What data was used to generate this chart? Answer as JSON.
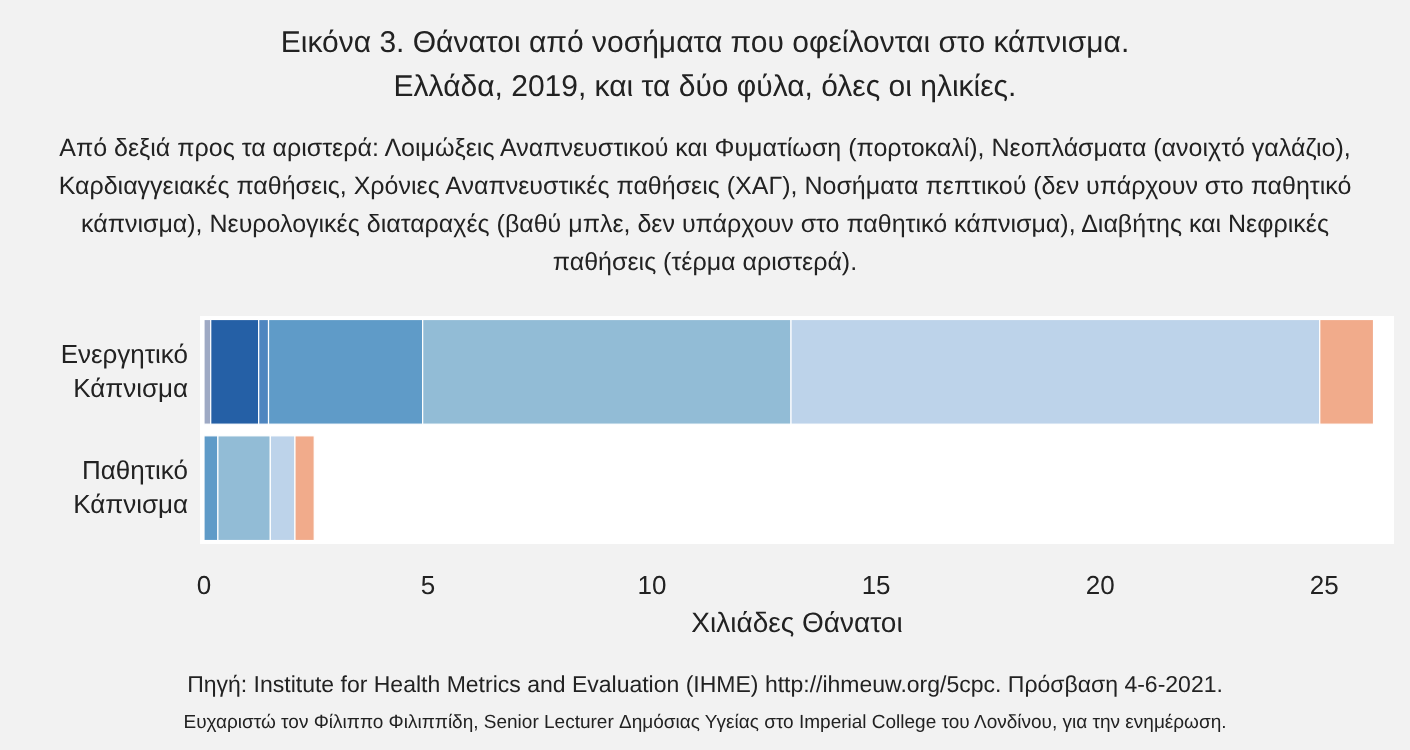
{
  "chart_data": {
    "type": "bar",
    "orientation": "horizontal",
    "stacked": true,
    "title": "Εικόνα 3. Θάνατοι από νοσήματα που οφείλονται στο κάπνισμα.",
    "subtitle": "Ελλάδα, 2019, και τα δύο φύλα, όλες οι ηλικίες.",
    "xlabel": "Χιλιάδες Θάνατοι",
    "categories": [
      "Ενεργητικό Κάπνισμα",
      "Παθητικό Κάπνισμα"
    ],
    "series": [
      {
        "color": "#9ea9c4",
        "values": [
          0.15,
          null
        ]
      },
      {
        "color": "#2560a6",
        "values": [
          1.07,
          null
        ]
      },
      {
        "color": "#4f86c0",
        "values": [
          0.22,
          null
        ]
      },
      {
        "color": "#5f9bc8",
        "values": [
          3.44,
          0.31
        ]
      },
      {
        "color": "#92bcd6",
        "values": [
          8.22,
          1.17
        ]
      },
      {
        "color": "#bdd3ea",
        "values": [
          11.8,
          0.55
        ]
      },
      {
        "color": "#f1ab8b",
        "values": [
          1.2,
          0.43
        ]
      }
    ],
    "xlim": [
      0,
      26.2
    ],
    "xticks": [
      0,
      5,
      10,
      15,
      20,
      25
    ],
    "grid": false,
    "annotations": [
      "Από δεξιά προς τα αριστερά: Λοιμώξεις Αναπνευστικού και Φυματίωση (πορτοκαλί), Νεοπλάσματα (ανοιχτό γαλάζιο), Καρδιαγγειακές παθήσεις, Χρόνιες Αναπνευστικές παθήσεις (ΧΑΓ), Νοσήματα πεπτικού (δεν υπάρχουν στο παθητικό κάπνισμα), Νευρολογικές διαταραχές (βαθύ μπλε, δεν υπάρχουν στο παθητικό κάπνισμα), Διαβήτης και Νεφρικές παθήσεις (τέρμα αριστερά).",
      "Πηγή: Institute for Health Metrics and Evaluation (IHME) http://ihmeuw.org/5cpc. Πρόσβαση 4-6-2021.",
      "Ευχαριστώ τον Φίλιππο Φιλιππίδη, Senior Lecturer Δημόσιας Υγείας στο Imperial College του Λονδίνου, για την ενημέρωση."
    ]
  }
}
